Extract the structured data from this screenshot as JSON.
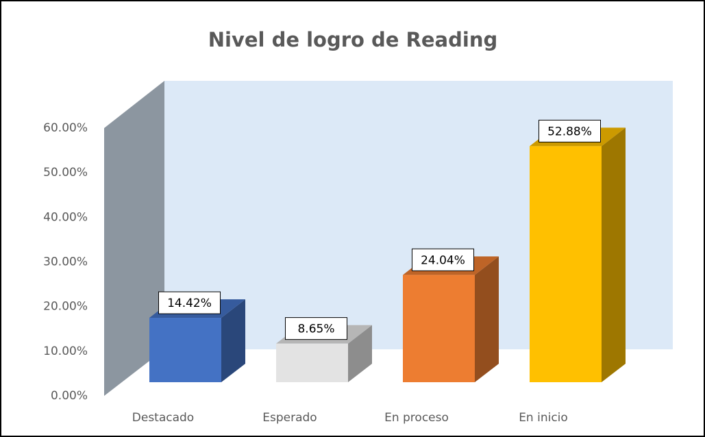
{
  "chart_data": {
    "type": "bar3d",
    "title": "Nivel de logro de Reading",
    "categories": [
      "Destacado",
      "Esperado",
      "En proceso",
      "En inicio"
    ],
    "values": [
      14.42,
      8.65,
      24.04,
      52.88
    ],
    "value_labels": [
      "14.42%",
      "8.65%",
      "24.04%",
      "52.88%"
    ],
    "colors": [
      "#4472c4",
      "#e3e3e3",
      "#ed7d31",
      "#ffc000"
    ],
    "ylim": [
      0,
      60
    ],
    "yticks": [
      {
        "value": 0,
        "label": "0.00%"
      },
      {
        "value": 10,
        "label": "10.00%"
      },
      {
        "value": 20,
        "label": "20.00%"
      },
      {
        "value": 30,
        "label": "30.00%"
      },
      {
        "value": 40,
        "label": "40.00%"
      },
      {
        "value": 50,
        "label": "50.00%"
      },
      {
        "value": 60,
        "label": "60.00%"
      }
    ]
  }
}
